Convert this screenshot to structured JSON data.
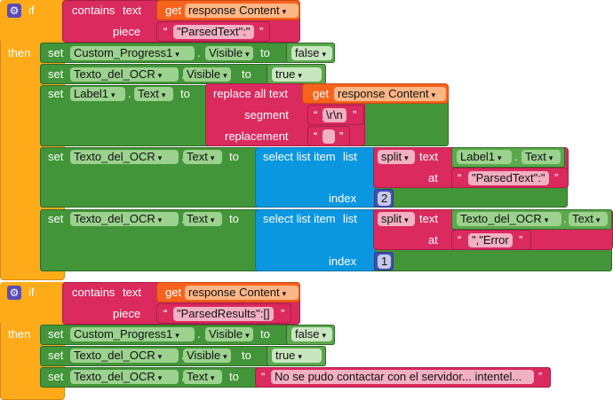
{
  "kw": {
    "if": "if",
    "then": "then",
    "set": "set",
    "to": "to",
    "dot": ".",
    "contains": "contains",
    "text": "text",
    "piece": "piece",
    "get": "get",
    "replace_all_text": "replace all text",
    "segment": "segment",
    "replacement": "replacement",
    "select_list_item": "select list item",
    "list": "list",
    "index": "index",
    "split": "split",
    "at": "at",
    "quote_open": "“",
    "quote_close": "”",
    "dropdown": "▾"
  },
  "block1": {
    "get_var": "response Content",
    "piece": "\"ParsedText\":\"",
    "s1": {
      "comp": "Custom_Progress1",
      "prop": "Visible",
      "val": "false"
    },
    "s2": {
      "comp": "Texto_del_OCR",
      "prop": "Visible",
      "val": "true"
    },
    "s3": {
      "comp": "Label1",
      "prop": "Text",
      "get_var": "response Content",
      "segment": "\\r\\n",
      "replacement": ""
    },
    "s4": {
      "comp": "Texto_del_OCR",
      "prop": "Text",
      "split_comp": "Label1",
      "split_prop": "Text",
      "at": "\"ParsedText\":\"",
      "index": "2"
    },
    "s5": {
      "comp": "Texto_del_OCR",
      "prop": "Text",
      "split_comp": "Texto_del_OCR",
      "split_prop": "Text",
      "at": "\",\"Error",
      "index": "1"
    }
  },
  "block2": {
    "get_var": "response Content",
    "piece": "\"ParsedResults\":[]",
    "s1": {
      "comp": "Custom_Progress1",
      "prop": "Visible",
      "val": "false"
    },
    "s2": {
      "comp": "Texto_del_OCR",
      "prop": "Visible",
      "val": "true"
    },
    "s3": {
      "comp": "Texto_del_OCR",
      "prop": "Text",
      "msg": "No se pudo contactar con el servidor... intentel..."
    }
  }
}
